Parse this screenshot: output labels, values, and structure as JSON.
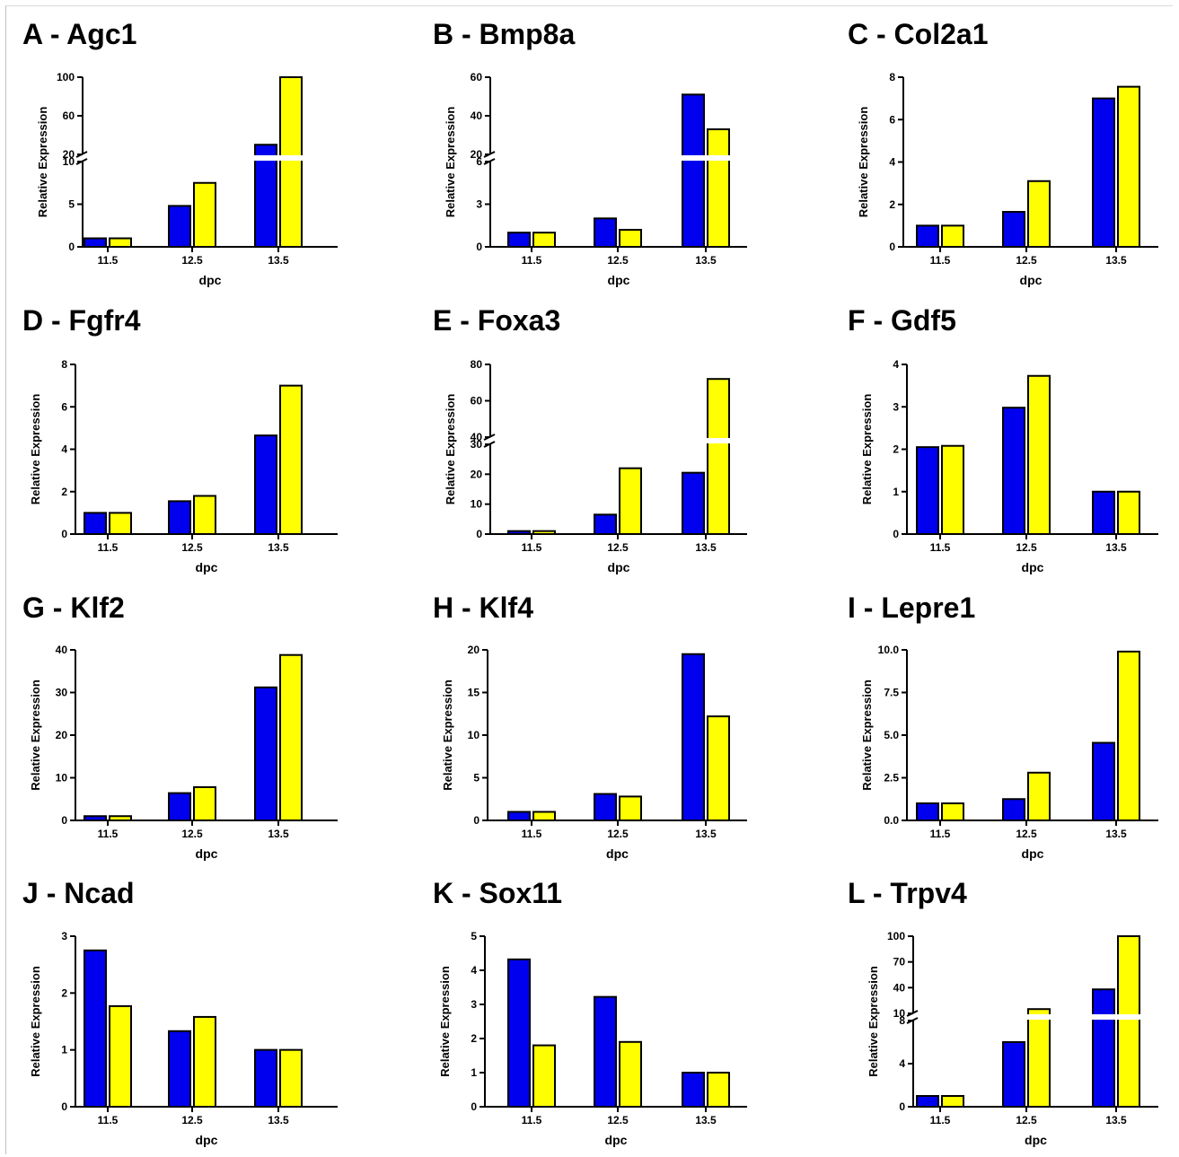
{
  "figure": {
    "x_categories": [
      "11.5",
      "12.5",
      "13.5"
    ],
    "x_label": "dpc",
    "y_label": "Relative Expression",
    "colors": {
      "series_1": "#0000ee",
      "series_2": "#ffff00",
      "outline": "#000000"
    }
  },
  "chart_data": [
    {
      "type": "bar",
      "title": "A - Agc1",
      "categories": [
        "11.5",
        "12.5",
        "13.5"
      ],
      "xlabel": "dpc",
      "ylabel": "Relative Expression",
      "series": [
        {
          "values": [
            1,
            4.8,
            30
          ]
        },
        {
          "values": [
            1,
            7.5,
            100
          ]
        }
      ],
      "axis_break": {
        "lower": [
          0,
          10
        ],
        "upper": [
          20,
          100
        ]
      },
      "lower_ticks": [
        "0",
        "5",
        "10"
      ],
      "upper_ticks": [
        "20",
        "60",
        "100"
      ]
    },
    {
      "type": "bar",
      "title": "B - Bmp8a",
      "categories": [
        "11.5",
        "12.5",
        "13.5"
      ],
      "xlabel": "dpc",
      "ylabel": "Relative Expression",
      "series": [
        {
          "values": [
            1,
            2,
            51
          ]
        },
        {
          "values": [
            1,
            1.2,
            33
          ]
        }
      ],
      "axis_break": {
        "lower": [
          0,
          6
        ],
        "upper": [
          20,
          60
        ]
      },
      "lower_ticks": [
        "0",
        "3",
        "6"
      ],
      "upper_ticks": [
        "20",
        "40",
        "60"
      ]
    },
    {
      "type": "bar",
      "title": "C - Col2a1",
      "categories": [
        "11.5",
        "12.5",
        "13.5"
      ],
      "xlabel": "dpc",
      "ylabel": "Relative Expression",
      "series": [
        {
          "values": [
            1,
            1.65,
            7
          ]
        },
        {
          "values": [
            1,
            3.1,
            7.55
          ]
        }
      ],
      "ylim": [
        0,
        8
      ],
      "ticks": [
        "0",
        "2",
        "4",
        "6",
        "8"
      ]
    },
    {
      "type": "bar",
      "title": "D - Fgfr4",
      "categories": [
        "11.5",
        "12.5",
        "13.5"
      ],
      "xlabel": "dpc",
      "ylabel": "Relative Expression",
      "series": [
        {
          "values": [
            1,
            1.55,
            4.65
          ]
        },
        {
          "values": [
            1,
            1.8,
            7
          ]
        }
      ],
      "ylim": [
        0,
        8
      ],
      "ticks": [
        "0",
        "2",
        "4",
        "6",
        "8"
      ]
    },
    {
      "type": "bar",
      "title": "E - Foxa3",
      "categories": [
        "11.5",
        "12.5",
        "13.5"
      ],
      "xlabel": "dpc",
      "ylabel": "Relative Expression",
      "series": [
        {
          "values": [
            1,
            6.5,
            20.5
          ]
        },
        {
          "values": [
            1,
            22,
            72
          ]
        }
      ],
      "axis_break": {
        "lower": [
          0,
          30
        ],
        "upper": [
          40,
          80
        ]
      },
      "lower_ticks": [
        "0",
        "10",
        "20",
        "30"
      ],
      "upper_ticks": [
        "40",
        "60",
        "80"
      ]
    },
    {
      "type": "bar",
      "title": "F - Gdf5",
      "categories": [
        "11.5",
        "12.5",
        "13.5"
      ],
      "xlabel": "dpc",
      "ylabel": "Relative Expression",
      "series": [
        {
          "values": [
            2.05,
            2.98,
            1
          ]
        },
        {
          "values": [
            2.08,
            3.73,
            1
          ]
        }
      ],
      "ylim": [
        0,
        4
      ],
      "ticks": [
        "0",
        "1",
        "2",
        "3",
        "4"
      ]
    },
    {
      "type": "bar",
      "title": "G - Klf2",
      "categories": [
        "11.5",
        "12.5",
        "13.5"
      ],
      "xlabel": "dpc",
      "ylabel": "Relative Expression",
      "series": [
        {
          "values": [
            1,
            6.4,
            31.2
          ]
        },
        {
          "values": [
            1,
            7.8,
            38.8
          ]
        }
      ],
      "ylim": [
        0,
        40
      ],
      "ticks": [
        "0",
        "10",
        "20",
        "30",
        "40"
      ]
    },
    {
      "type": "bar",
      "title": "H - Klf4",
      "categories": [
        "11.5",
        "12.5",
        "13.5"
      ],
      "xlabel": "dpc",
      "ylabel": "Relative Expression",
      "series": [
        {
          "values": [
            1,
            3.1,
            19.5
          ]
        },
        {
          "values": [
            1,
            2.8,
            12.2
          ]
        }
      ],
      "ylim": [
        0,
        20
      ],
      "ticks": [
        "0",
        "5",
        "10",
        "15",
        "20"
      ]
    },
    {
      "type": "bar",
      "title": "I - Lepre1",
      "categories": [
        "11.5",
        "12.5",
        "13.5"
      ],
      "xlabel": "dpc",
      "ylabel": "Relative Expression",
      "series": [
        {
          "values": [
            1,
            1.25,
            4.55
          ]
        },
        {
          "values": [
            1,
            2.8,
            9.9
          ]
        }
      ],
      "ylim": [
        0,
        10
      ],
      "ticks": [
        "0.0",
        "2.5",
        "5.0",
        "7.5",
        "10.0"
      ]
    },
    {
      "type": "bar",
      "title": "J - Ncad",
      "categories": [
        "11.5",
        "12.5",
        "13.5"
      ],
      "xlabel": "dpc",
      "ylabel": "Relative Expression",
      "series": [
        {
          "values": [
            2.75,
            1.33,
            1
          ]
        },
        {
          "values": [
            1.77,
            1.58,
            1
          ]
        }
      ],
      "ylim": [
        0,
        3
      ],
      "ticks": [
        "0",
        "1",
        "2",
        "3"
      ]
    },
    {
      "type": "bar",
      "title": "K - Sox11",
      "categories": [
        "11.5",
        "12.5",
        "13.5"
      ],
      "xlabel": "dpc",
      "ylabel": "Relative Expression",
      "series": [
        {
          "values": [
            4.32,
            3.22,
            1
          ]
        },
        {
          "values": [
            1.8,
            1.9,
            1
          ]
        }
      ],
      "ylim": [
        0,
        5
      ],
      "ticks": [
        "0",
        "1",
        "2",
        "3",
        "4",
        "5"
      ]
    },
    {
      "type": "bar",
      "title": "L - Trpv4",
      "categories": [
        "11.5",
        "12.5",
        "13.5"
      ],
      "xlabel": "dpc",
      "ylabel": "Relative Expression",
      "series": [
        {
          "values": [
            1,
            6,
            38
          ]
        },
        {
          "values": [
            1,
            15,
            100
          ]
        }
      ],
      "axis_break": {
        "lower": [
          0,
          8
        ],
        "upper": [
          10,
          100
        ]
      },
      "lower_ticks": [
        "0",
        "4",
        "8"
      ],
      "upper_ticks": [
        "10",
        "40",
        "70",
        "100"
      ]
    }
  ]
}
